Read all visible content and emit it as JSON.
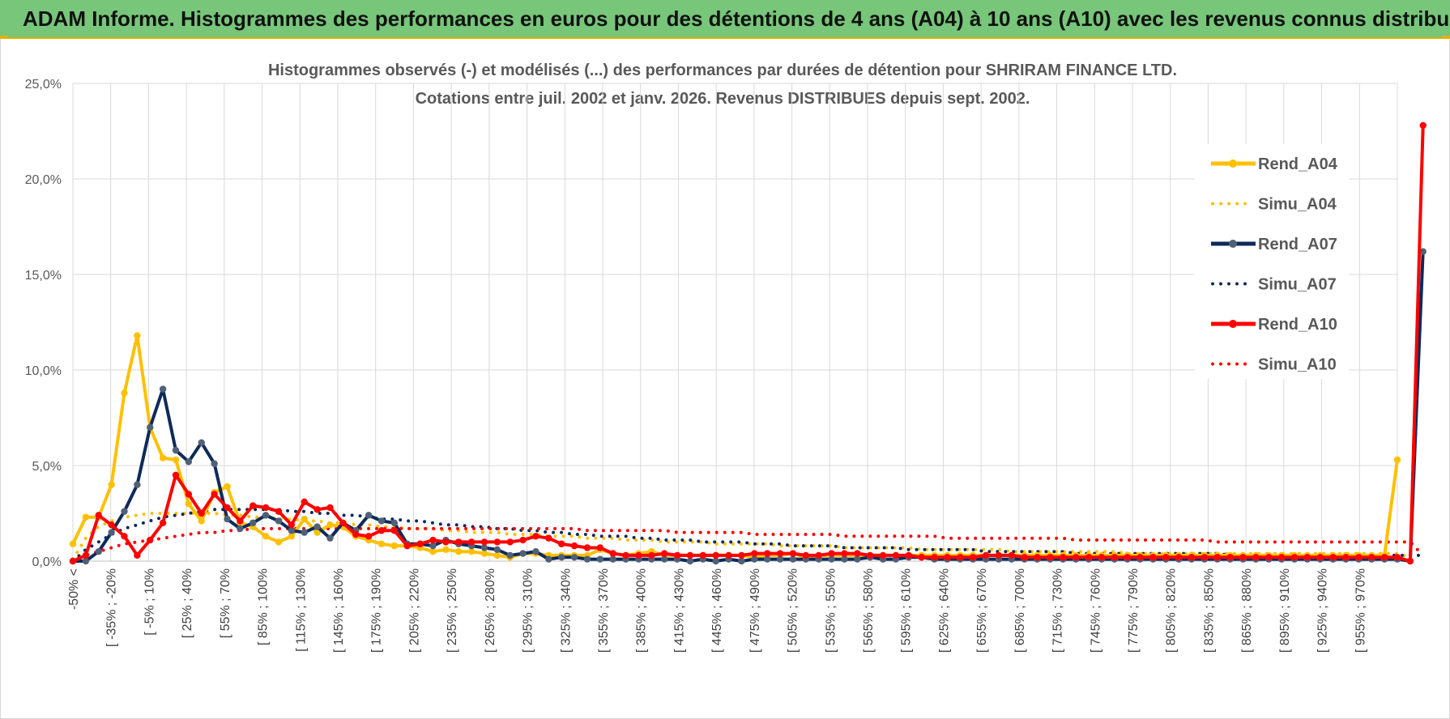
{
  "header": {
    "title": "ADAM Informe. Histogrammes des performances en euros pour des détentions de 4 ans (A04) à 10 ans (A10) avec les revenus connus distribués"
  },
  "colors": {
    "banner": "#77c67a",
    "banner_border": "#e2b100",
    "A04": "#ffc000",
    "A07": "#0e2a5a",
    "A10": "#ff0000",
    "marker_A07": "#4f6178",
    "grid": "#d9d9d9"
  },
  "chart_data": {
    "type": "line",
    "title_line1": "Histogrammes observés (-) et modélisés (...) des performances par durées de détention pour SHRIRAM FINANCE LTD.",
    "title_line2": "Cotations entre juil. 2002 et janv. 2026. Revenus DISTRIBUES depuis sept. 2002.",
    "ylim": [
      0,
      25
    ],
    "y_ticks": [
      "0,0%",
      "5,0%",
      "10,0%",
      "15,0%",
      "20,0%",
      "25,0%"
    ],
    "y_tick_values": [
      0,
      5,
      10,
      15,
      20,
      25
    ],
    "grid": true,
    "legend_position": "right",
    "categories_shown": [
      "-50% <",
      "[ -35% ; -20%",
      "[ -5% ; 10%",
      "[ 25% ; 40%",
      "[ 55% ; 70%",
      "[ 85% ; 100%",
      "[ 115% ; 130%",
      "[ 145% ; 160%",
      "[ 175% ; 190%",
      "[ 205% ; 220%",
      "[ 235% ; 250%",
      "[ 265% ; 280%",
      "[ 295% ; 310%",
      "[ 325% ; 340%",
      "[ 355% ; 370%",
      "[ 385% ; 400%",
      "[ 415% ; 430%",
      "[ 445% ; 460%",
      "[ 475% ; 490%",
      "[ 505% ; 520%",
      "[ 535% ; 550%",
      "[ 565% ; 580%",
      "[ 595% ; 610%",
      "[ 625% ; 640%",
      "[ 655% ; 670%",
      "[ 685% ; 700%",
      "[ 715% ; 730%",
      "[ 745% ; 760%",
      "[ 775% ; 790%",
      "[ 805% ; 820%",
      "[ 835% ; 850%",
      "[ 865% ; 880%",
      "[ 895% ; 910%",
      "[ 925% ; 940%",
      "[ 955% ; 970%"
    ],
    "series": [
      {
        "name": "Rend_A04",
        "style": "solid",
        "color": "#ffc000",
        "values": [
          0.9,
          2.3,
          2.3,
          4.0,
          8.8,
          11.8,
          7.0,
          5.4,
          5.3,
          3.0,
          2.1,
          3.6,
          3.9,
          2.0,
          1.8,
          1.3,
          1.0,
          1.3,
          2.2,
          1.5,
          1.9,
          1.8,
          1.3,
          1.1,
          0.9,
          0.8,
          0.8,
          0.7,
          0.5,
          0.6,
          0.5,
          0.5,
          0.4,
          0.3,
          0.2,
          0.4,
          0.4,
          0.3,
          0.3,
          0.3,
          0.3,
          0.6,
          0.4,
          0.3,
          0.4,
          0.5,
          0.3,
          0.3,
          0.3,
          0.3,
          0.3,
          0.3,
          0.3,
          0.2,
          0.3,
          0.3,
          0.4,
          0.2,
          0.3,
          0.3,
          0.3,
          0.3,
          0.3,
          0.3,
          0.3,
          0.3,
          0.3,
          0.3,
          0.3,
          0.3,
          0.3,
          0.3,
          0.3,
          0.3,
          0.3,
          0.3,
          0.3,
          0.3,
          0.3,
          0.3,
          0.3,
          0.3,
          0.3,
          0.3,
          0.3,
          0.3,
          0.3,
          0.3,
          0.3,
          0.3,
          0.3,
          0.3,
          0.3,
          0.3,
          0.3,
          0.3,
          0.3,
          0.3,
          0.3,
          0.3,
          0.3,
          0.3,
          0.3,
          5.3
        ]
      },
      {
        "name": "Simu_A04",
        "style": "dotted",
        "color": "#ffc000",
        "values": [
          0.1,
          1.2,
          1.8,
          2.1,
          2.3,
          2.4,
          2.5,
          2.5,
          2.5,
          2.5,
          2.5,
          2.5,
          2.4,
          2.4,
          2.3,
          2.3,
          2.2,
          2.2,
          2.1,
          2.1,
          2.0,
          2.0,
          1.9,
          1.9,
          1.8,
          1.8,
          1.7,
          1.7,
          1.7,
          1.6,
          1.6,
          1.5,
          1.5,
          1.5,
          1.4,
          1.4,
          1.4,
          1.3,
          1.3,
          1.3,
          1.2,
          1.2,
          1.2,
          1.1,
          1.1,
          1.1,
          1.0,
          1.0,
          1.0,
          1.0,
          0.9,
          0.9,
          0.9,
          0.9,
          0.9,
          0.8,
          0.8,
          0.8,
          0.8,
          0.8,
          0.7,
          0.7,
          0.7,
          0.7,
          0.7,
          0.7,
          0.6,
          0.6,
          0.6,
          0.6,
          0.6,
          0.6,
          0.6,
          0.5,
          0.5,
          0.5,
          0.5,
          0.5,
          0.5,
          0.5,
          0.5,
          0.5,
          0.4,
          0.4,
          0.4,
          0.4,
          0.4,
          0.4,
          0.4,
          0.4,
          0.4,
          0.4,
          0.4,
          0.4,
          0.4,
          0.4,
          0.4,
          0.4,
          0.4,
          0.4,
          0.4,
          0.4,
          0.4,
          0.4,
          0.2
        ]
      },
      {
        "name": "Rend_A07",
        "style": "solid",
        "color": "#0e2a5a",
        "values": [
          0.0,
          0.0,
          0.5,
          1.5,
          2.6,
          4.0,
          7.0,
          9.0,
          5.8,
          5.2,
          6.2,
          5.1,
          2.2,
          1.7,
          2.0,
          2.4,
          2.1,
          1.6,
          1.5,
          1.8,
          1.2,
          2.0,
          1.6,
          2.4,
          2.1,
          2.0,
          0.9,
          0.9,
          0.8,
          1.1,
          0.9,
          0.8,
          0.7,
          0.6,
          0.3,
          0.4,
          0.5,
          0.1,
          0.2,
          0.2,
          0.1,
          0.1,
          0.1,
          0.1,
          0.1,
          0.1,
          0.1,
          0.1,
          0.0,
          0.1,
          0.0,
          0.1,
          0.0,
          0.1,
          0.1,
          0.1,
          0.1,
          0.1,
          0.1,
          0.1,
          0.1,
          0.1,
          0.2,
          0.1,
          0.1,
          0.2,
          0.2,
          0.1,
          0.1,
          0.1,
          0.1,
          0.1,
          0.1,
          0.1,
          0.1,
          0.1,
          0.1,
          0.1,
          0.1,
          0.1,
          0.1,
          0.1,
          0.1,
          0.1,
          0.1,
          0.1,
          0.1,
          0.1,
          0.1,
          0.1,
          0.1,
          0.1,
          0.1,
          0.1,
          0.1,
          0.1,
          0.1,
          0.1,
          0.1,
          0.1,
          0.1,
          0.1,
          0.1,
          0.1,
          0.0,
          16.2
        ]
      },
      {
        "name": "Simu_A07",
        "style": "dotted",
        "color": "#0e2a5a",
        "values": [
          0.0,
          0.6,
          1.0,
          1.4,
          1.7,
          1.9,
          2.1,
          2.3,
          2.4,
          2.5,
          2.6,
          2.7,
          2.7,
          2.7,
          2.7,
          2.7,
          2.7,
          2.6,
          2.6,
          2.5,
          2.5,
          2.4,
          2.4,
          2.3,
          2.2,
          2.2,
          2.1,
          2.1,
          2.0,
          1.9,
          1.9,
          1.8,
          1.8,
          1.7,
          1.7,
          1.6,
          1.6,
          1.5,
          1.5,
          1.4,
          1.4,
          1.3,
          1.3,
          1.3,
          1.2,
          1.2,
          1.1,
          1.1,
          1.1,
          1.0,
          1.0,
          1.0,
          1.0,
          0.9,
          0.9,
          0.9,
          0.8,
          0.8,
          0.8,
          0.8,
          0.7,
          0.7,
          0.7,
          0.7,
          0.7,
          0.6,
          0.6,
          0.6,
          0.6,
          0.6,
          0.6,
          0.5,
          0.5,
          0.5,
          0.5,
          0.5,
          0.5,
          0.5,
          0.4,
          0.4,
          0.4,
          0.4,
          0.4,
          0.4,
          0.4,
          0.4,
          0.4,
          0.4,
          0.4,
          0.4,
          0.3,
          0.3,
          0.3,
          0.3,
          0.3,
          0.3,
          0.3,
          0.3,
          0.3,
          0.3,
          0.3,
          0.3,
          0.3,
          0.3,
          0.3,
          0.3
        ]
      },
      {
        "name": "Rend_A10",
        "style": "solid",
        "color": "#ff0000",
        "values": [
          0.0,
          0.3,
          2.4,
          1.9,
          1.3,
          0.3,
          1.1,
          2.0,
          4.5,
          3.5,
          2.5,
          3.5,
          2.8,
          2.1,
          2.9,
          2.8,
          2.6,
          1.9,
          3.1,
          2.7,
          2.8,
          2.0,
          1.4,
          1.3,
          1.6,
          1.6,
          0.8,
          0.9,
          1.1,
          1.0,
          1.0,
          1.0,
          1.0,
          1.0,
          1.0,
          1.1,
          1.3,
          1.2,
          0.9,
          0.8,
          0.7,
          0.7,
          0.4,
          0.3,
          0.3,
          0.3,
          0.4,
          0.3,
          0.3,
          0.3,
          0.3,
          0.3,
          0.3,
          0.4,
          0.4,
          0.4,
          0.4,
          0.3,
          0.3,
          0.4,
          0.4,
          0.4,
          0.3,
          0.3,
          0.3,
          0.3,
          0.2,
          0.2,
          0.2,
          0.2,
          0.2,
          0.3,
          0.3,
          0.3,
          0.2,
          0.2,
          0.2,
          0.2,
          0.2,
          0.2,
          0.2,
          0.2,
          0.2,
          0.2,
          0.2,
          0.2,
          0.2,
          0.2,
          0.2,
          0.2,
          0.2,
          0.2,
          0.2,
          0.2,
          0.2,
          0.2,
          0.2,
          0.2,
          0.2,
          0.2,
          0.2,
          0.2,
          0.2,
          0.2,
          0.0,
          22.8
        ]
      },
      {
        "name": "Simu_A10",
        "style": "dotted",
        "color": "#ff0000",
        "values": [
          0.0,
          0.3,
          0.5,
          0.7,
          0.9,
          1.0,
          1.1,
          1.2,
          1.3,
          1.4,
          1.5,
          1.5,
          1.6,
          1.6,
          1.7,
          1.7,
          1.7,
          1.7,
          1.7,
          1.7,
          1.7,
          1.7,
          1.7,
          1.7,
          1.7,
          1.7,
          1.7,
          1.7,
          1.7,
          1.7,
          1.7,
          1.7,
          1.7,
          1.7,
          1.7,
          1.7,
          1.7,
          1.7,
          1.7,
          1.7,
          1.6,
          1.6,
          1.6,
          1.6,
          1.6,
          1.6,
          1.6,
          1.5,
          1.5,
          1.5,
          1.5,
          1.5,
          1.5,
          1.4,
          1.4,
          1.4,
          1.4,
          1.4,
          1.4,
          1.4,
          1.3,
          1.3,
          1.3,
          1.3,
          1.3,
          1.3,
          1.3,
          1.3,
          1.2,
          1.2,
          1.2,
          1.2,
          1.2,
          1.2,
          1.2,
          1.2,
          1.2,
          1.2,
          1.1,
          1.1,
          1.1,
          1.1,
          1.1,
          1.1,
          1.1,
          1.1,
          1.1,
          1.1,
          1.1,
          1.0,
          1.0,
          1.0,
          1.0,
          1.0,
          1.0,
          1.0,
          1.0,
          1.0,
          1.0,
          1.0,
          1.0,
          1.0,
          1.0,
          1.0,
          1.0,
          0.3
        ]
      }
    ]
  }
}
